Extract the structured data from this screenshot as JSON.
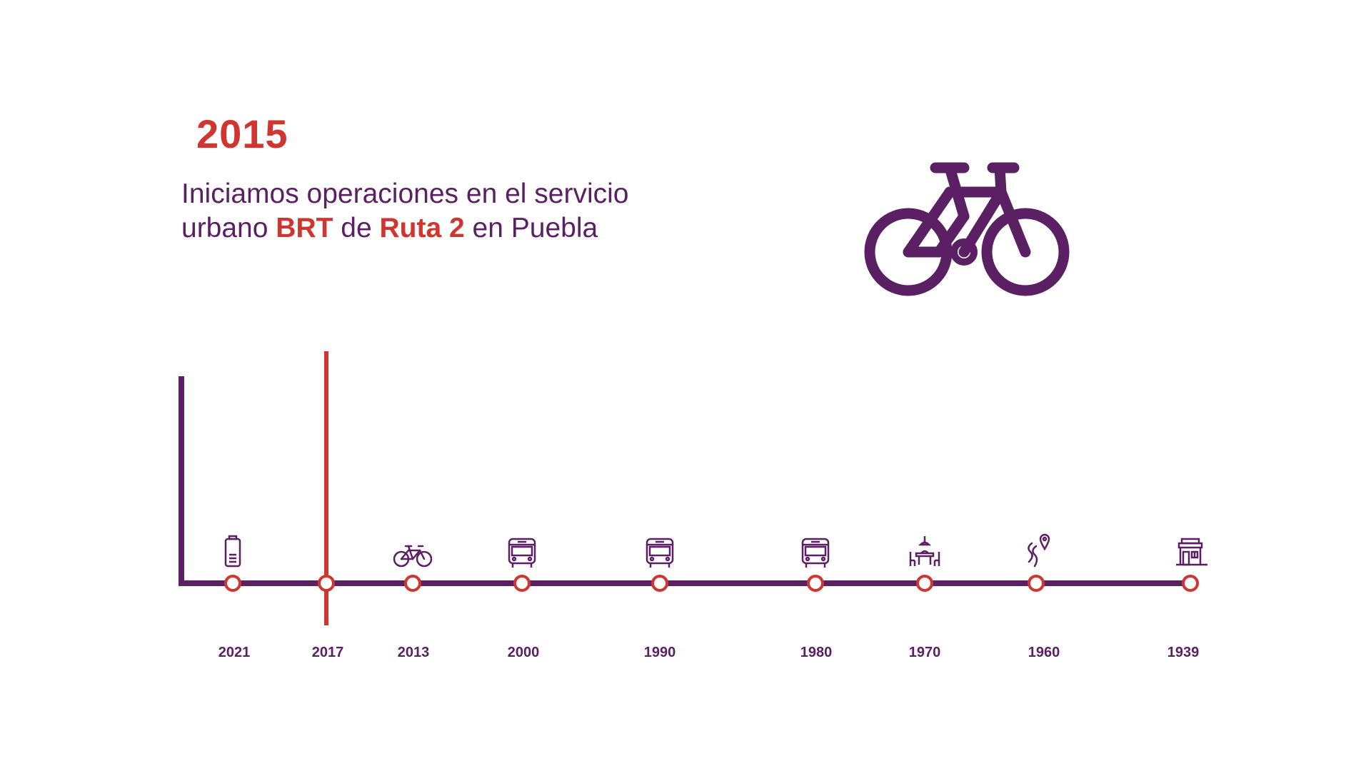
{
  "colors": {
    "purple": "#5b1f63",
    "red": "#d0352f",
    "marker_fill": "#ffffff"
  },
  "featured": {
    "year": "2015",
    "text_before": "Iniciamos operaciones en el servicio urbano ",
    "highlight_1": "BRT",
    "text_middle": " de ",
    "highlight_2": "Ruta 2",
    "text_after": " en Puebla",
    "icon": "bicycle-icon"
  },
  "timeline": {
    "current_marker_year": "2017",
    "milestones": [
      {
        "year": "2021",
        "icon": "battery-icon"
      },
      {
        "year": "2017",
        "icon": ""
      },
      {
        "year": "2013",
        "icon": "bicycle-icon"
      },
      {
        "year": "2000",
        "icon": "bus-icon"
      },
      {
        "year": "1990",
        "icon": "bus-icon"
      },
      {
        "year": "1980",
        "icon": "bus-icon"
      },
      {
        "year": "1970",
        "icon": "dining-table-icon"
      },
      {
        "year": "1960",
        "icon": "route-pin-icon"
      },
      {
        "year": "1939",
        "icon": "storefront-icon"
      }
    ]
  }
}
